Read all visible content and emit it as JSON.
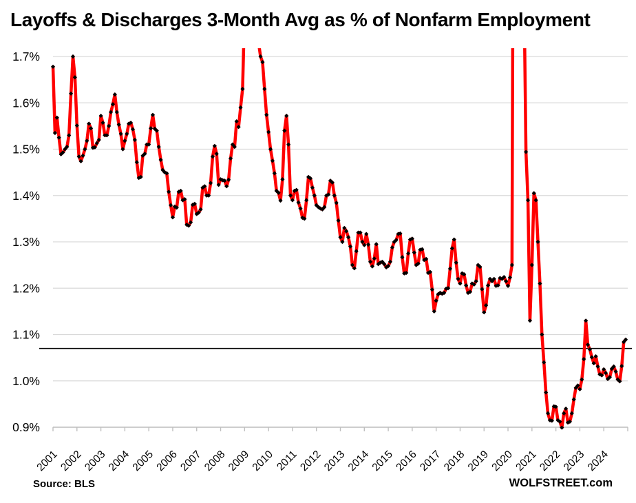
{
  "title": "Layoffs & Discharges 3-Month Avg as % of Nonfarm Employment",
  "footer": {
    "source": "Source: BLS",
    "brand": "WOLFSTREET.com"
  },
  "chart_data": {
    "type": "line",
    "title": "Layoffs & Discharges 3-Month Avg as % of Nonfarm Employment",
    "series_name": "Layoffs & discharges, 3-month average, as % of nonfarm employment",
    "frequency": "monthly",
    "start": "2001-01",
    "end": "2024-12",
    "xlabel": "",
    "ylabel": "",
    "x_tick_labels": [
      "2001",
      "2002",
      "2003",
      "2004",
      "2005",
      "2006",
      "2007",
      "2008",
      "2009",
      "2010",
      "2011",
      "2012",
      "2013",
      "2014",
      "2015",
      "2016",
      "2017",
      "2018",
      "2019",
      "2020",
      "2021",
      "2022",
      "2023",
      "2024"
    ],
    "y_tick_labels": [
      "1.7%",
      "1.6%",
      "1.5%",
      "1.4%",
      "1.3%",
      "1.2%",
      "1.1%",
      "1.0%",
      "0.9%"
    ],
    "y_tick_values": [
      1.7,
      1.6,
      1.5,
      1.4,
      1.3,
      1.2,
      1.1,
      1.0,
      0.9
    ],
    "ylim_visible": [
      0.9,
      1.718
    ],
    "grid": true,
    "legend": "none",
    "reference_line": {
      "value": 1.07,
      "color": "#000000",
      "label": ""
    },
    "line_color": "#ff0000",
    "marker_color": "#000000",
    "grid_color": "#d9d9d9",
    "axis_color": "#bfbfbf",
    "off_scale_note": "Values for early 2009 and Apr-Sep 2020 exceed 1.7% and are clipped at the top of the plot",
    "values_by_year": {
      "2001": [
        1.678,
        1.535,
        1.568,
        1.525,
        1.489,
        1.493,
        1.5,
        1.505,
        1.53,
        1.62,
        1.7,
        1.655
      ],
      "2002": [
        1.551,
        1.484,
        1.474,
        1.486,
        1.5,
        1.518,
        1.555,
        1.545,
        1.503,
        1.504,
        1.513,
        1.52
      ],
      "2003": [
        1.572,
        1.557,
        1.53,
        1.53,
        1.55,
        1.58,
        1.597,
        1.618,
        1.58,
        1.553,
        1.533,
        1.5
      ],
      "2004": [
        1.518,
        1.533,
        1.555,
        1.557,
        1.543,
        1.52,
        1.472,
        1.438,
        1.44,
        1.486,
        1.49,
        1.51
      ],
      "2005": [
        1.51,
        1.545,
        1.574,
        1.544,
        1.54,
        1.505,
        1.477,
        1.455,
        1.45,
        1.448,
        1.408,
        1.379
      ],
      "2006": [
        1.353,
        1.376,
        1.374,
        1.408,
        1.41,
        1.39,
        1.392,
        1.337,
        1.335,
        1.342,
        1.38,
        1.382
      ],
      "2007": [
        1.36,
        1.363,
        1.37,
        1.417,
        1.42,
        1.4,
        1.4,
        1.427,
        1.484,
        1.507,
        1.49,
        1.423
      ],
      "2008": [
        1.435,
        1.433,
        1.432,
        1.42,
        1.434,
        1.48,
        1.51,
        1.505,
        1.56,
        1.548,
        1.59,
        1.63
      ],
      "2009": [
        1.8,
        1.86,
        1.9,
        1.91,
        1.88,
        1.83,
        1.77,
        1.73,
        1.7,
        1.688,
        1.63,
        1.574
      ],
      "2010": [
        1.537,
        1.5,
        1.475,
        1.448,
        1.41,
        1.406,
        1.389,
        1.435,
        1.54,
        1.572,
        1.51,
        1.4
      ],
      "2011": [
        1.39,
        1.41,
        1.412,
        1.385,
        1.372,
        1.352,
        1.35,
        1.39,
        1.44,
        1.437,
        1.417,
        1.4
      ],
      "2012": [
        1.379,
        1.375,
        1.372,
        1.37,
        1.375,
        1.4,
        1.402,
        1.432,
        1.428,
        1.4,
        1.384,
        1.346
      ],
      "2013": [
        1.31,
        1.3,
        1.33,
        1.323,
        1.31,
        1.29,
        1.25,
        1.243,
        1.28,
        1.32,
        1.32,
        1.3
      ],
      "2014": [
        1.293,
        1.317,
        1.294,
        1.257,
        1.247,
        1.264,
        1.295,
        1.252,
        1.255,
        1.257,
        1.252,
        1.245
      ],
      "2015": [
        1.248,
        1.257,
        1.288,
        1.3,
        1.304,
        1.317,
        1.318,
        1.267,
        1.232,
        1.233,
        1.275,
        1.305
      ],
      "2016": [
        1.307,
        1.277,
        1.25,
        1.253,
        1.283,
        1.284,
        1.261,
        1.263,
        1.233,
        1.235,
        1.197,
        1.15
      ],
      "2017": [
        1.173,
        1.187,
        1.19,
        1.188,
        1.19,
        1.199,
        1.2,
        1.242,
        1.286,
        1.305,
        1.255,
        1.22
      ],
      "2018": [
        1.21,
        1.232,
        1.23,
        1.206,
        1.19,
        1.192,
        1.21,
        1.208,
        1.215,
        1.25,
        1.246,
        1.198
      ],
      "2019": [
        1.148,
        1.163,
        1.206,
        1.22,
        1.215,
        1.22,
        1.205,
        1.206,
        1.222,
        1.22,
        1.224,
        1.215
      ],
      "2020": [
        1.205,
        1.223,
        1.25,
        2.6,
        3.4,
        3.2,
        2.6,
        2.0,
        1.85,
        1.494,
        1.39,
        1.13
      ],
      "2021": [
        1.25,
        1.405,
        1.39,
        1.3,
        1.21,
        1.1,
        1.04,
        0.975,
        0.93,
        0.915,
        0.914,
        0.945
      ],
      "2022": [
        0.944,
        0.915,
        0.912,
        0.899,
        0.93,
        0.94,
        0.91,
        0.912,
        0.93,
        0.96,
        0.985,
        0.99
      ],
      "2023": [
        0.982,
        1.003,
        1.047,
        1.13,
        1.078,
        1.068,
        1.051,
        1.038,
        1.053,
        1.031,
        1.014,
        1.012
      ],
      "2024": [
        1.025,
        1.017,
        1.004,
        1.008,
        1.026,
        1.031,
        1.02,
        1.003,
        0.999,
        1.032,
        1.084,
        1.089
      ]
    }
  }
}
